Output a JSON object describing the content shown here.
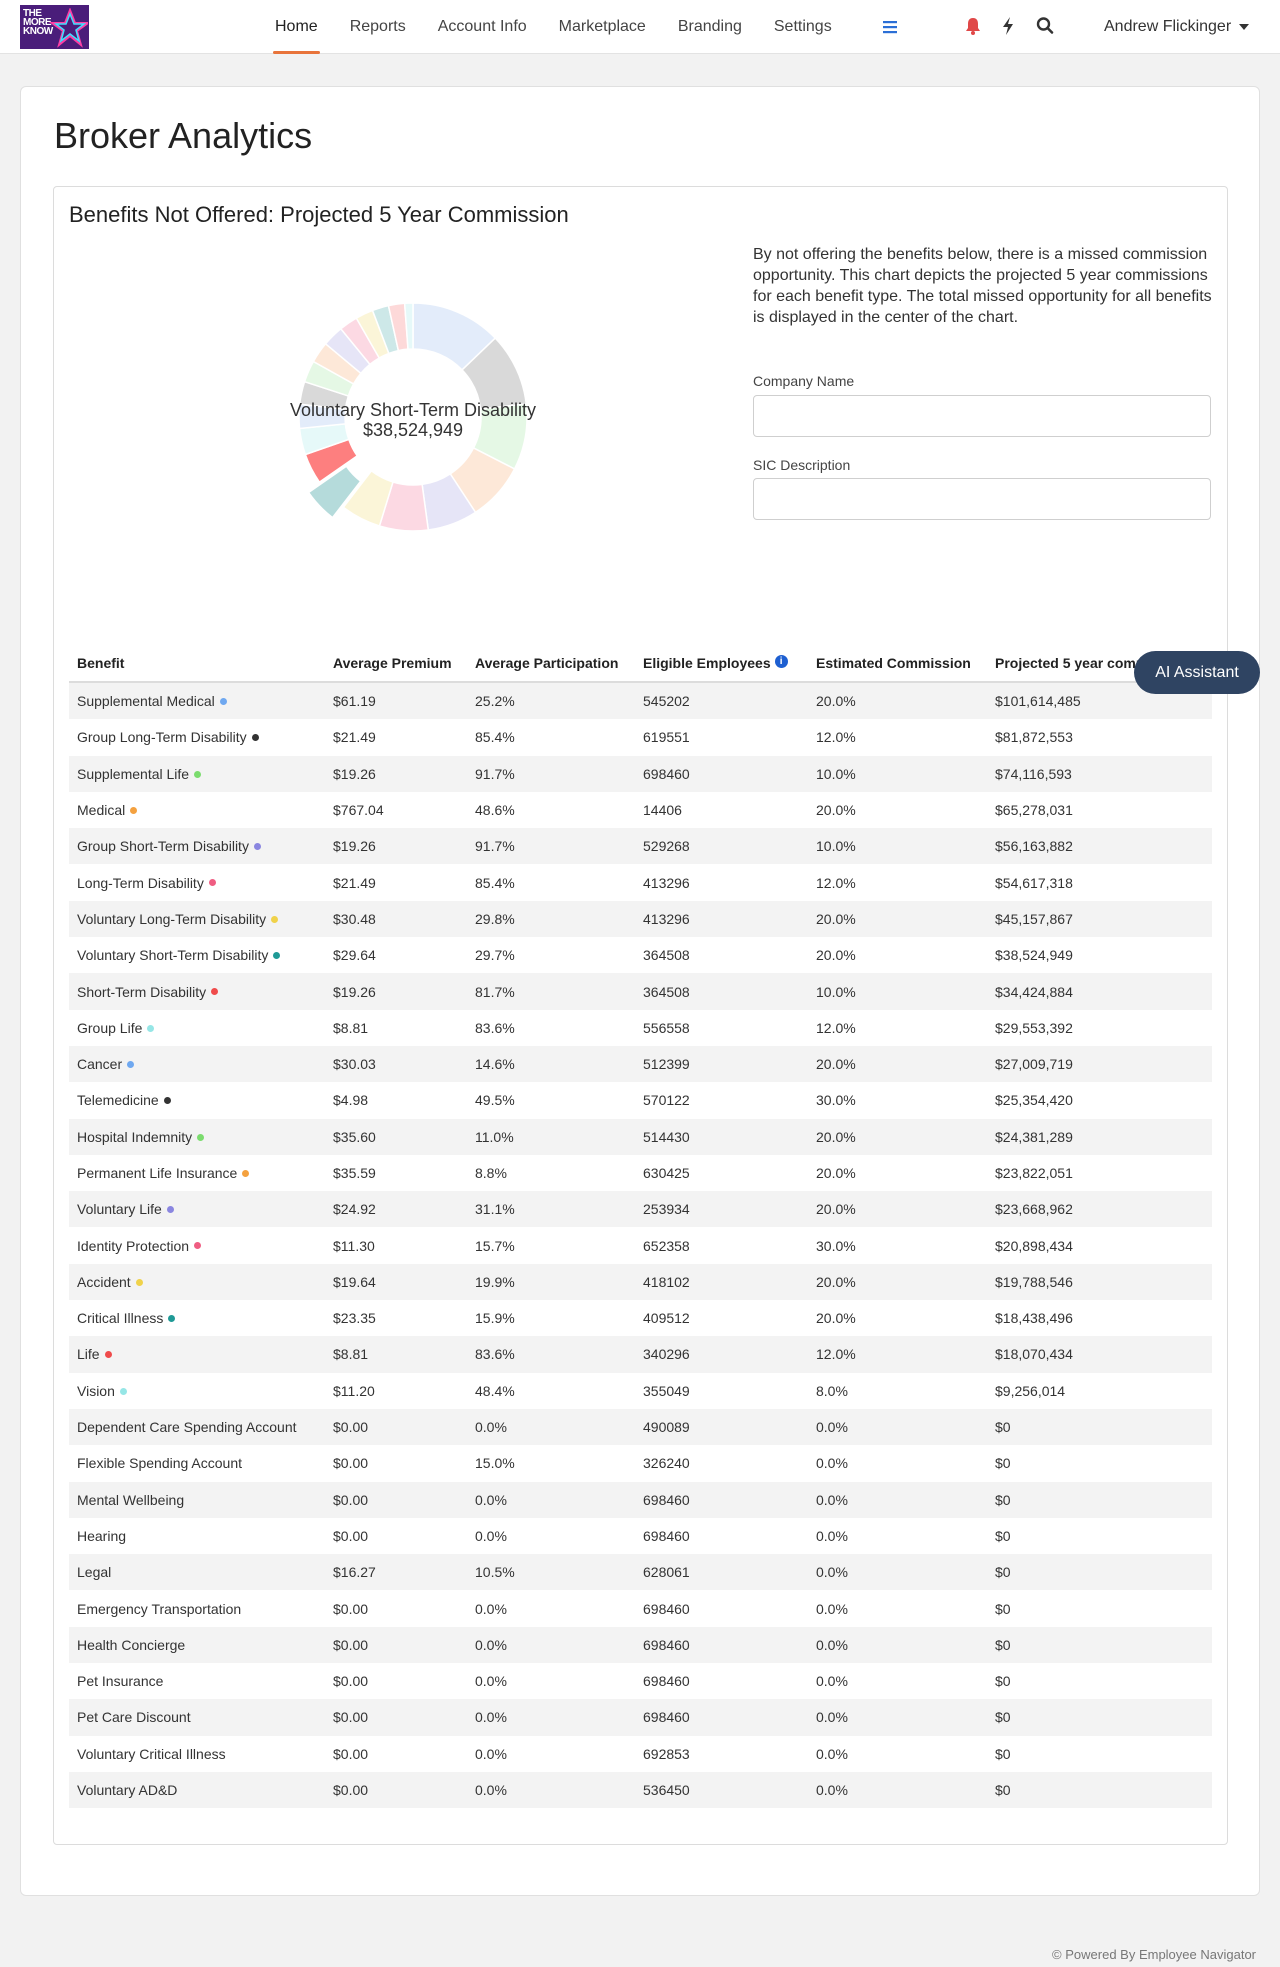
{
  "brand": {
    "logo_alt": "The More You Know"
  },
  "nav": {
    "links": [
      "Home",
      "Reports",
      "Account Info",
      "Marketplace",
      "Branding",
      "Settings"
    ],
    "active": "Home",
    "icons": [
      "menu-icon",
      "bell-icon",
      "bolt-icon",
      "search-icon"
    ],
    "user_name": "Andrew Flickinger"
  },
  "page": {
    "title": "Broker Analytics"
  },
  "section": {
    "title": "Benefits Not Offered: Projected 5 Year Commission",
    "description": "By not offering the benefits below, there is a missed commission opportunity. This chart depicts the projected 5 year commissions for each benefit type. The total missed opportunity for all benefits is displayed in the center of the chart.",
    "company_name_label": "Company Name",
    "company_name_value": "",
    "sic_label": "SIC Description",
    "sic_value": ""
  },
  "chart_data": {
    "type": "pie",
    "center_label": "Voluntary Short-Term Disability",
    "center_value": "$38,524,949",
    "highlighted": "Voluntary Short-Term Disability",
    "categories": [
      "Supplemental Medical",
      "Group Long-Term Disability",
      "Supplemental Life",
      "Medical",
      "Group Short-Term Disability",
      "Long-Term Disability",
      "Voluntary Long-Term Disability",
      "Voluntary Short-Term Disability",
      "Short-Term Disability",
      "Group Life",
      "Cancer",
      "Telemedicine",
      "Hospital Indemnity",
      "Permanent Life Insurance",
      "Voluntary Life",
      "Identity Protection",
      "Accident",
      "Critical Illness",
      "Life",
      "Vision"
    ],
    "values": [
      101614485,
      81872553,
      74116593,
      65278031,
      56163882,
      54617318,
      45157867,
      38524949,
      34424884,
      29553392,
      27009719,
      25354420,
      24381289,
      23822051,
      23668962,
      20898434,
      19788546,
      18438496,
      18070434,
      9256014
    ],
    "colors": [
      "#e3ecfa",
      "#d9d9d9",
      "#e5f8e5",
      "#fde8d8",
      "#e6e5f7",
      "#fcd9e3",
      "#fbf5d8",
      "#b5dbdb",
      "#fd7f7f",
      "#e6f9f9",
      "#e3ecfa",
      "#d9d9d9",
      "#e5f8e5",
      "#fde8d8",
      "#e6e5f7",
      "#fcd9e3",
      "#fbf5d8",
      "#cde8e8",
      "#fdd9d9",
      "#e6f9f9"
    ]
  },
  "table": {
    "columns": [
      "Benefit",
      "Average Premium",
      "Average Participation",
      "Eligible Employees",
      "Estimated Commission",
      "Projected 5 year commission"
    ],
    "rows": [
      {
        "benefit": "Supplemental Medical",
        "dot": "#6fa8f0",
        "premium": "$61.19",
        "participation": "25.2%",
        "eligible": "545202",
        "commission": "20.0%",
        "projected": "$101,614,485"
      },
      {
        "benefit": "Group Long-Term Disability",
        "dot": "#333333",
        "premium": "$21.49",
        "participation": "85.4%",
        "eligible": "619551",
        "commission": "12.0%",
        "projected": "$81,872,553"
      },
      {
        "benefit": "Supplemental Life",
        "dot": "#7bdc6e",
        "premium": "$19.26",
        "participation": "91.7%",
        "eligible": "698460",
        "commission": "10.0%",
        "projected": "$74,116,593"
      },
      {
        "benefit": "Medical",
        "dot": "#f4a13f",
        "premium": "$767.04",
        "participation": "48.6%",
        "eligible": "14406",
        "commission": "20.0%",
        "projected": "$65,278,031"
      },
      {
        "benefit": "Group Short-Term Disability",
        "dot": "#8a86e0",
        "premium": "$19.26",
        "participation": "91.7%",
        "eligible": "529268",
        "commission": "10.0%",
        "projected": "$56,163,882"
      },
      {
        "benefit": "Long-Term Disability",
        "dot": "#ef5d82",
        "premium": "$21.49",
        "participation": "85.4%",
        "eligible": "413296",
        "commission": "12.0%",
        "projected": "$54,617,318"
      },
      {
        "benefit": "Voluntary Long-Term Disability",
        "dot": "#f0d24a",
        "premium": "$30.48",
        "participation": "29.8%",
        "eligible": "413296",
        "commission": "20.0%",
        "projected": "$45,157,867"
      },
      {
        "benefit": "Voluntary Short-Term Disability",
        "dot": "#1f9a96",
        "premium": "$29.64",
        "participation": "29.7%",
        "eligible": "364508",
        "commission": "20.0%",
        "projected": "$38,524,949"
      },
      {
        "benefit": "Short-Term Disability",
        "dot": "#ef4b4b",
        "premium": "$19.26",
        "participation": "81.7%",
        "eligible": "364508",
        "commission": "10.0%",
        "projected": "$34,424,884"
      },
      {
        "benefit": "Group Life",
        "dot": "#96e6e6",
        "premium": "$8.81",
        "participation": "83.6%",
        "eligible": "556558",
        "commission": "12.0%",
        "projected": "$29,553,392"
      },
      {
        "benefit": "Cancer",
        "dot": "#6fa8f0",
        "premium": "$30.03",
        "participation": "14.6%",
        "eligible": "512399",
        "commission": "20.0%",
        "projected": "$27,009,719"
      },
      {
        "benefit": "Telemedicine",
        "dot": "#333333",
        "premium": "$4.98",
        "participation": "49.5%",
        "eligible": "570122",
        "commission": "30.0%",
        "projected": "$25,354,420"
      },
      {
        "benefit": "Hospital Indemnity",
        "dot": "#7bdc6e",
        "premium": "$35.60",
        "participation": "11.0%",
        "eligible": "514430",
        "commission": "20.0%",
        "projected": "$24,381,289"
      },
      {
        "benefit": "Permanent Life Insurance",
        "dot": "#f4a13f",
        "premium": "$35.59",
        "participation": "8.8%",
        "eligible": "630425",
        "commission": "20.0%",
        "projected": "$23,822,051"
      },
      {
        "benefit": "Voluntary Life",
        "dot": "#8a86e0",
        "premium": "$24.92",
        "participation": "31.1%",
        "eligible": "253934",
        "commission": "20.0%",
        "projected": "$23,668,962"
      },
      {
        "benefit": "Identity Protection",
        "dot": "#ef5d82",
        "premium": "$11.30",
        "participation": "15.7%",
        "eligible": "652358",
        "commission": "30.0%",
        "projected": "$20,898,434"
      },
      {
        "benefit": "Accident",
        "dot": "#f0d24a",
        "premium": "$19.64",
        "participation": "19.9%",
        "eligible": "418102",
        "commission": "20.0%",
        "projected": "$19,788,546"
      },
      {
        "benefit": "Critical Illness",
        "dot": "#1f9a96",
        "premium": "$23.35",
        "participation": "15.9%",
        "eligible": "409512",
        "commission": "20.0%",
        "projected": "$18,438,496"
      },
      {
        "benefit": "Life",
        "dot": "#ef4b4b",
        "premium": "$8.81",
        "participation": "83.6%",
        "eligible": "340296",
        "commission": "12.0%",
        "projected": "$18,070,434"
      },
      {
        "benefit": "Vision",
        "dot": "#96e6e6",
        "premium": "$11.20",
        "participation": "48.4%",
        "eligible": "355049",
        "commission": "8.0%",
        "projected": "$9,256,014"
      },
      {
        "benefit": "Dependent Care Spending Account",
        "dot": "",
        "premium": "$0.00",
        "participation": "0.0%",
        "eligible": "490089",
        "commission": "0.0%",
        "projected": "$0"
      },
      {
        "benefit": "Flexible Spending Account",
        "dot": "",
        "premium": "$0.00",
        "participation": "15.0%",
        "eligible": "326240",
        "commission": "0.0%",
        "projected": "$0"
      },
      {
        "benefit": "Mental Wellbeing",
        "dot": "",
        "premium": "$0.00",
        "participation": "0.0%",
        "eligible": "698460",
        "commission": "0.0%",
        "projected": "$0"
      },
      {
        "benefit": "Hearing",
        "dot": "",
        "premium": "$0.00",
        "participation": "0.0%",
        "eligible": "698460",
        "commission": "0.0%",
        "projected": "$0"
      },
      {
        "benefit": "Legal",
        "dot": "",
        "premium": "$16.27",
        "participation": "10.5%",
        "eligible": "628061",
        "commission": "0.0%",
        "projected": "$0"
      },
      {
        "benefit": "Emergency Transportation",
        "dot": "",
        "premium": "$0.00",
        "participation": "0.0%",
        "eligible": "698460",
        "commission": "0.0%",
        "projected": "$0"
      },
      {
        "benefit": "Health Concierge",
        "dot": "",
        "premium": "$0.00",
        "participation": "0.0%",
        "eligible": "698460",
        "commission": "0.0%",
        "projected": "$0"
      },
      {
        "benefit": "Pet Insurance",
        "dot": "",
        "premium": "$0.00",
        "participation": "0.0%",
        "eligible": "698460",
        "commission": "0.0%",
        "projected": "$0"
      },
      {
        "benefit": "Pet Care Discount",
        "dot": "",
        "premium": "$0.00",
        "participation": "0.0%",
        "eligible": "698460",
        "commission": "0.0%",
        "projected": "$0"
      },
      {
        "benefit": "Voluntary Critical Illness",
        "dot": "",
        "premium": "$0.00",
        "participation": "0.0%",
        "eligible": "692853",
        "commission": "0.0%",
        "projected": "$0"
      },
      {
        "benefit": "Voluntary AD&D",
        "dot": "",
        "premium": "$0.00",
        "participation": "0.0%",
        "eligible": "536450",
        "commission": "0.0%",
        "projected": "$0"
      }
    ]
  },
  "ai_assistant": {
    "label": "AI Assistant"
  },
  "footer": {
    "text": "© Powered By Employee Navigator"
  }
}
